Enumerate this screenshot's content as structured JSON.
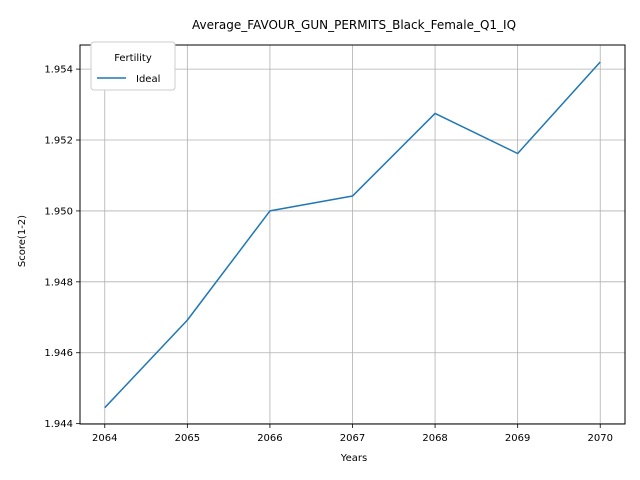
{
  "chart_data": {
    "type": "line",
    "title": "Average_FAVOUR_GUN_PERMITS_Black_Female_Q1_IQ",
    "xlabel": "Years",
    "ylabel": "Score(1-2)",
    "x": [
      2064,
      2065,
      2066,
      2067,
      2068,
      2069,
      2070
    ],
    "x_ticks": [
      "2064",
      "2065",
      "2066",
      "2067",
      "2068",
      "2069",
      "2070"
    ],
    "y_ticks": [
      "1.944",
      "1.946",
      "1.948",
      "1.950",
      "1.952",
      "1.954"
    ],
    "xlim": [
      2063.7,
      2070.3
    ],
    "ylim": [
      1.94399,
      1.95468
    ],
    "grid": true,
    "legend": {
      "title": "Fertility",
      "placement": "upper-left"
    },
    "series": [
      {
        "name": "Ideal",
        "color": "#1f77b4",
        "values": [
          1.94445,
          1.94692,
          1.95,
          1.95042,
          1.95275,
          1.95162,
          1.9542
        ]
      }
    ]
  }
}
